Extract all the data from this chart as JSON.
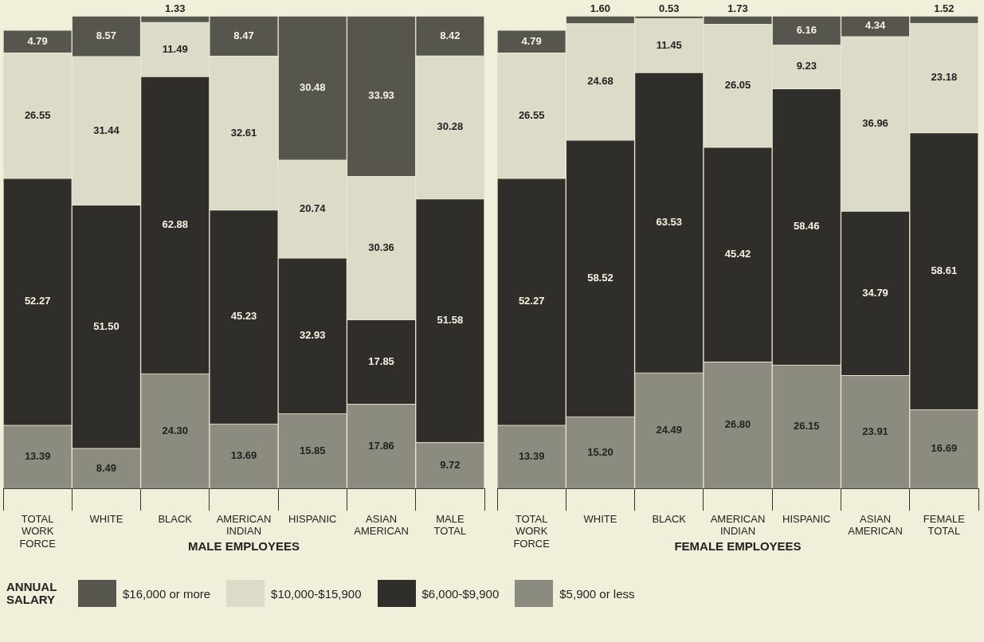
{
  "chart_data": [
    {
      "type": "bar",
      "stacked": true,
      "grid": false,
      "legend": "bottom",
      "legend_title": "ANNUAL SALARY",
      "xlabel": "MALE EMPLOYEES",
      "categories": [
        "TOTAL WORK FORCE",
        "WHITE",
        "BLACK",
        "AMERICAN INDIAN",
        "HISPANIC",
        "ASIAN AMERICAN",
        "MALE TOTAL"
      ],
      "series": [
        {
          "name": "$5,900 or less",
          "color": "#8c8b80",
          "values": [
            13.39,
            8.49,
            24.3,
            13.69,
            15.85,
            17.86,
            9.72
          ],
          "value_labels": [
            "13.39",
            "8.49",
            "24.30",
            "13.69",
            "15.85",
            "17.86",
            "9.72"
          ]
        },
        {
          "name": "$6,000-$9,900",
          "color": "#302e2a",
          "values": [
            52.27,
            51.5,
            62.88,
            45.23,
            32.93,
            17.85,
            51.58
          ],
          "value_labels": [
            "52.27",
            "51.50",
            "62.88",
            "45.23",
            "32.93",
            "17.85",
            "51.58"
          ]
        },
        {
          "name": "$10,000-$15,900",
          "color": "#dcdbc8",
          "values": [
            26.55,
            31.44,
            11.49,
            32.61,
            20.74,
            30.36,
            30.28
          ],
          "value_labels": [
            "26.55",
            "31.44",
            "11.49",
            "32.61",
            "20.74",
            "30.36",
            "30.28"
          ]
        },
        {
          "name": "$16,000 or more",
          "color": "#56564f",
          "values": [
            4.79,
            8.57,
            1.33,
            8.47,
            30.48,
            33.93,
            8.42
          ],
          "value_labels": [
            "4.79",
            "8.57",
            "1.33",
            "8.47",
            "30.48",
            "33.93",
            "8.42"
          ]
        }
      ]
    },
    {
      "type": "bar",
      "stacked": true,
      "grid": false,
      "xlabel": "FEMALE EMPLOYEES",
      "categories": [
        "TOTAL WORK FORCE",
        "WHITE",
        "BLACK",
        "AMERICAN INDIAN",
        "HISPANIC",
        "ASIAN AMERICAN",
        "FEMALE TOTAL"
      ],
      "series": [
        {
          "color": "#8c8b80",
          "values": [
            13.39,
            15.2,
            24.49,
            26.8,
            26.15,
            23.91,
            16.69
          ],
          "value_labels": [
            "13.39",
            "15.20",
            "24.49",
            "26.80",
            "26.15",
            "23.91",
            "16.69"
          ]
        },
        {
          "color": "#302e2a",
          "values": [
            52.27,
            58.52,
            63.53,
            45.42,
            58.46,
            34.79,
            58.61
          ],
          "value_labels": [
            "52.27",
            "58.52",
            "63.53",
            "45.42",
            "58.46",
            "34.79",
            "58.61"
          ]
        },
        {
          "color": "#dcdbc8",
          "values": [
            26.55,
            24.68,
            11.45,
            26.05,
            9.23,
            36.96,
            23.18
          ],
          "value_labels": [
            "26.55",
            "24.68",
            "11.45",
            "26.05",
            "9.23",
            "36.96",
            "23.18"
          ]
        },
        {
          "color": "#56564f",
          "values": [
            4.79,
            1.6,
            0.53,
            1.73,
            6.16,
            4.34,
            1.52
          ],
          "value_labels": [
            "4.79",
            "1.60",
            "0.53",
            "1.73",
            "6.16",
            "4.34",
            "1.52"
          ]
        }
      ]
    }
  ]
}
